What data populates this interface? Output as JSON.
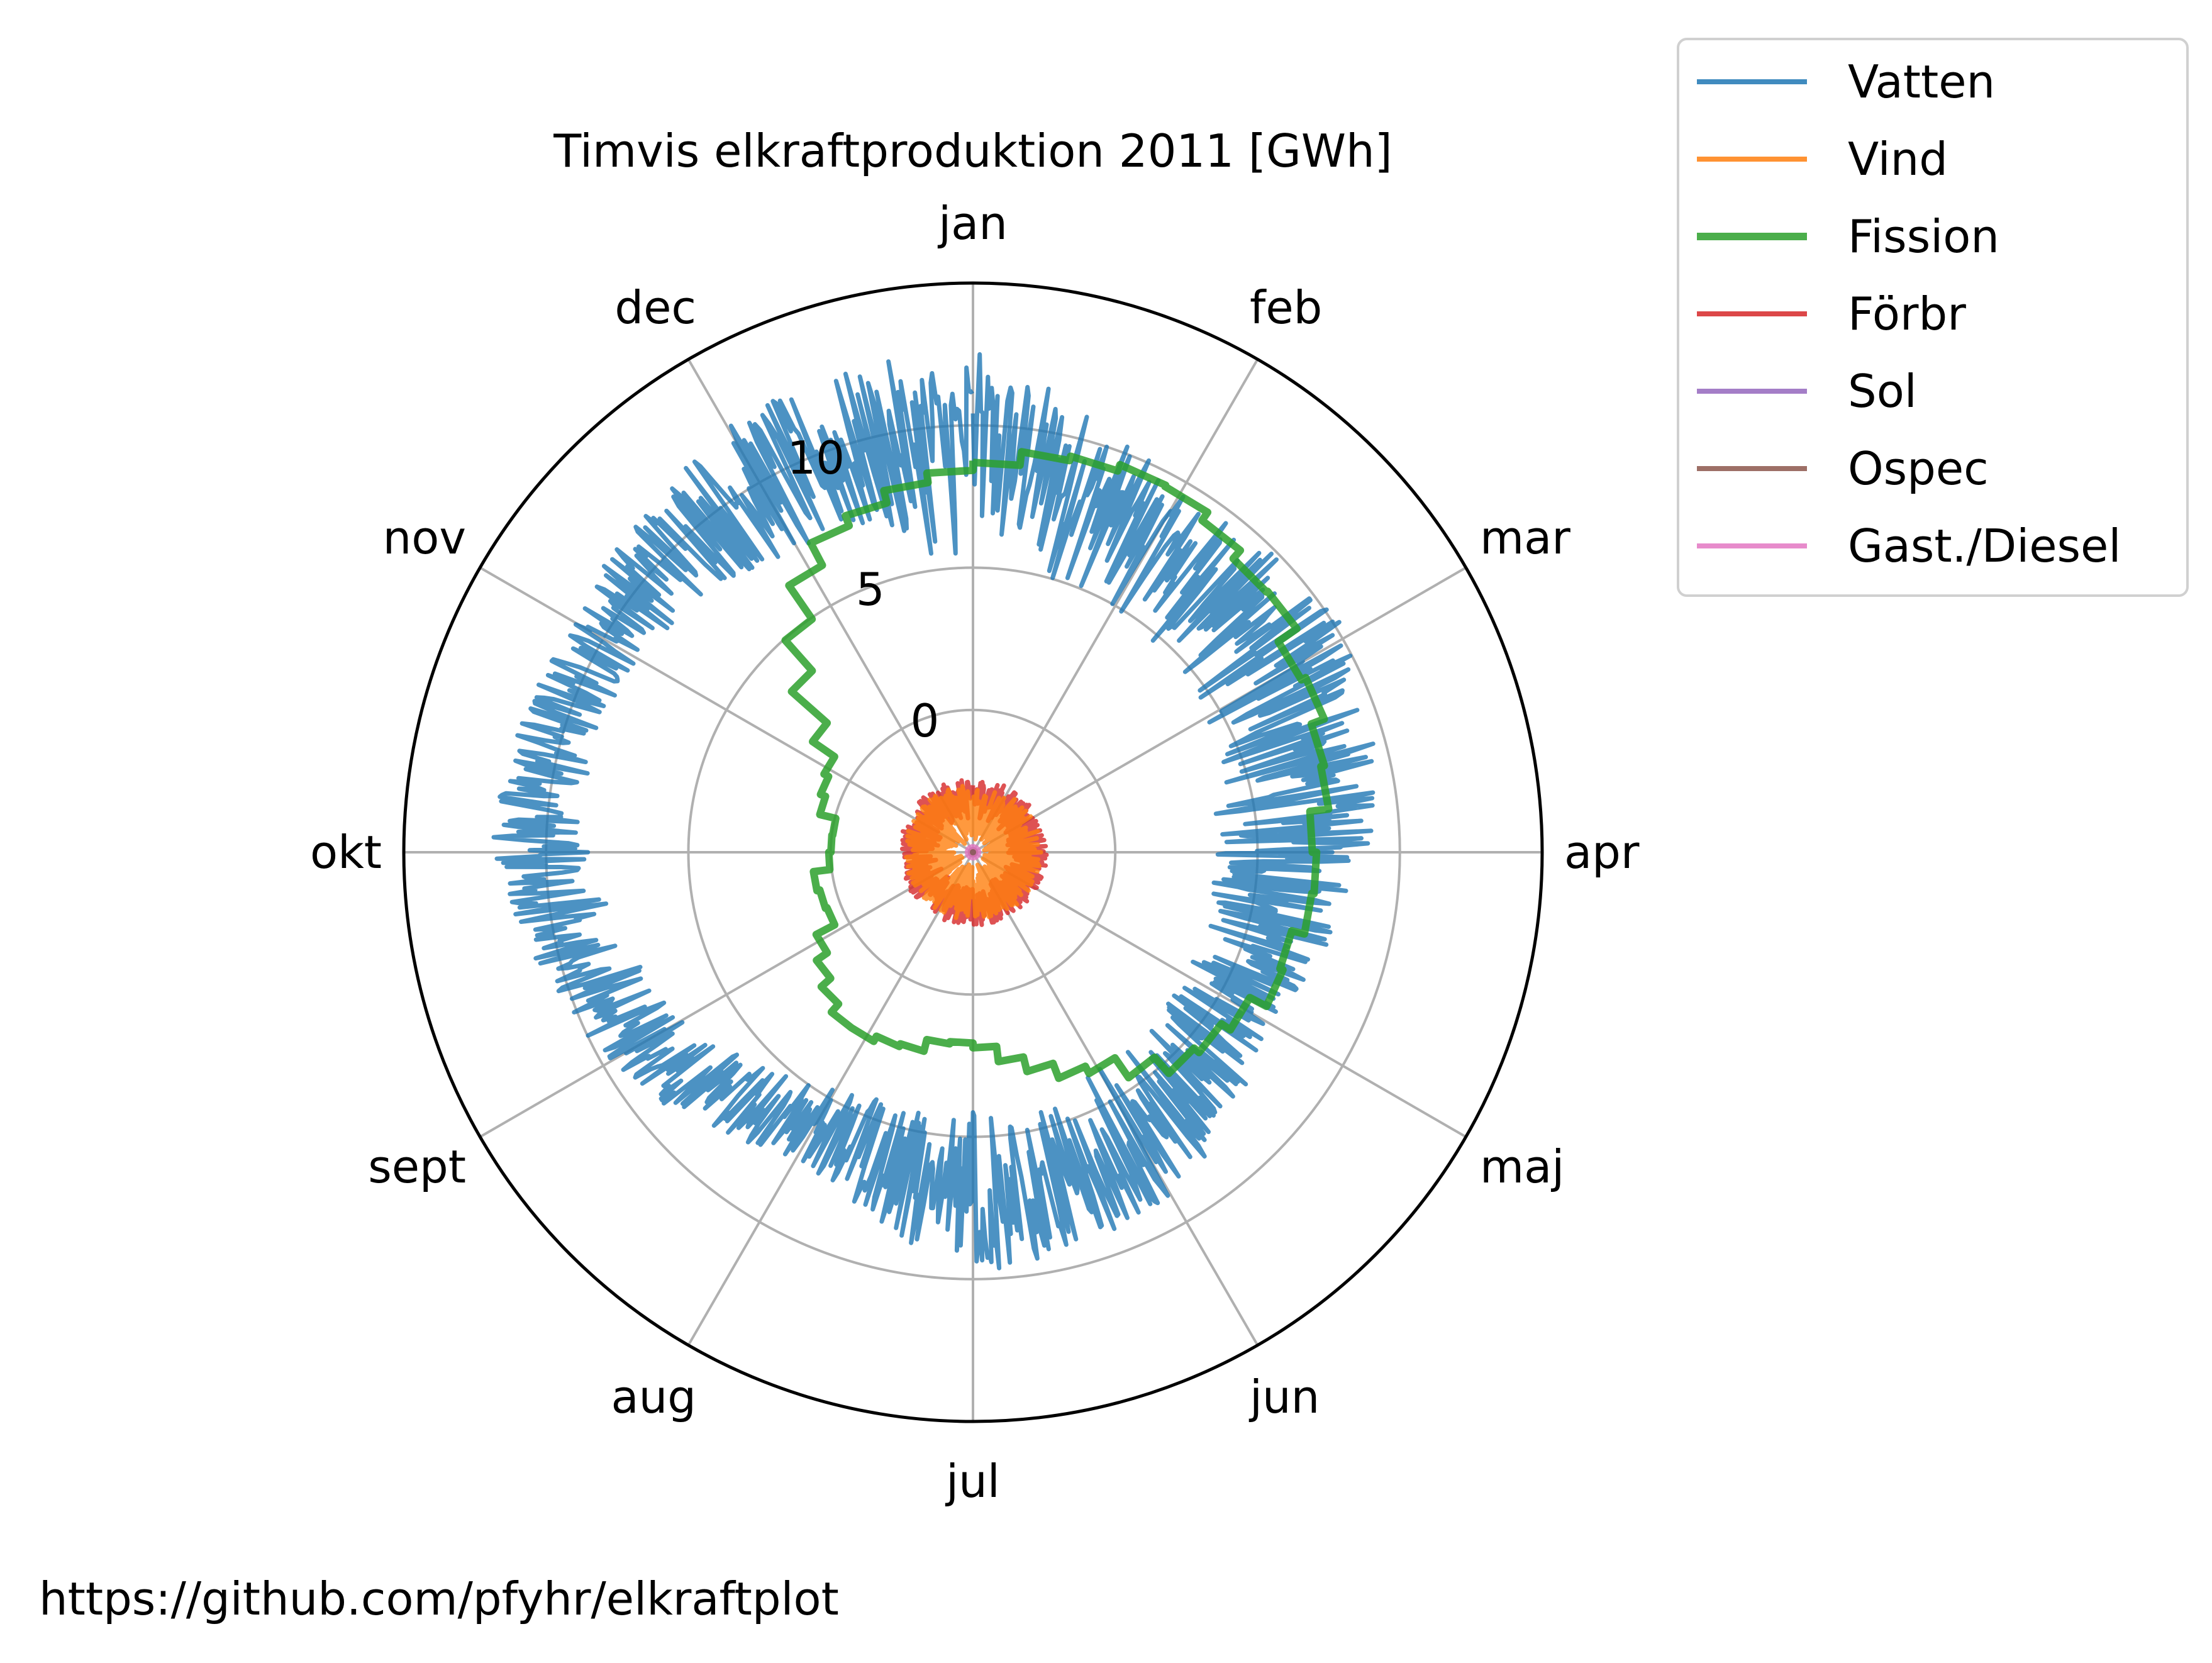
{
  "chart_data": {
    "type": "polar-line",
    "title": "Timvis elkraftproduktion 2011 [GWh]",
    "angular_axis": {
      "direction": "clockwise",
      "zero_at": "top",
      "labels": [
        "jan",
        "feb",
        "mar",
        "apr",
        "maj",
        "jun",
        "jul",
        "aug",
        "sept",
        "okt",
        "nov",
        "dec"
      ]
    },
    "radial_axis": {
      "range": [
        -5,
        15
      ],
      "ticks": [
        0,
        5,
        10
      ],
      "tick_labels": [
        "0",
        "5",
        "10"
      ],
      "unit": "GWh"
    },
    "grid": true,
    "legend": {
      "placement": "outside-top-right"
    },
    "series": [
      {
        "name": "Vatten",
        "color": "#1f77b4",
        "style": "noisy",
        "months": [
          "jan",
          "feb",
          "mar",
          "apr",
          "maj",
          "jun",
          "jul",
          "aug",
          "sept",
          "okt",
          "nov",
          "dec"
        ],
        "low": [
          5,
          4.9,
          4.2,
          3.3,
          3.6,
          3.7,
          4.1,
          4.4,
          6.6,
          8.5,
          8.6,
          7.1
        ],
        "high": [
          12.6,
          9.5,
          10.3,
          8.9,
          7.0,
          8.9,
          9.9,
          7.4,
          9.7,
          12.0,
          11.2,
          12.3
        ]
      },
      {
        "name": "Vind",
        "color": "#ff7f0e",
        "style": "noisy",
        "low": [
          -4.6
        ],
        "high": [
          -2.6
        ]
      },
      {
        "name": "Fission",
        "color": "#2ca02c",
        "style": "step",
        "months": [
          "jan",
          "feb",
          "mar",
          "apr",
          "maj",
          "jun",
          "jul",
          "aug",
          "sept",
          "okt",
          "nov",
          "dec"
        ],
        "values": [
          8.8,
          9.6,
          8.0,
          7.0,
          6.2,
          3.5,
          1.8,
          2.7,
          0.8,
          0.0,
          0.9,
          6.9
        ]
      },
      {
        "name": "Förbr",
        "color": "#d62728",
        "style": "noisy",
        "low": [
          -3.8
        ],
        "high": [
          -2.4
        ]
      },
      {
        "name": "Sol",
        "color": "#9467bd",
        "style": "flat",
        "values": [
          -4.9
        ]
      },
      {
        "name": "Ospec",
        "color": "#8c564b",
        "style": "flat",
        "values": [
          -4.95
        ]
      },
      {
        "name": "Gast./Diesel",
        "color": "#e377c2",
        "style": "flat",
        "values": [
          -4.8
        ]
      }
    ]
  },
  "footer": {
    "url": "https://github.com/pfyhr/elkraftplot"
  }
}
